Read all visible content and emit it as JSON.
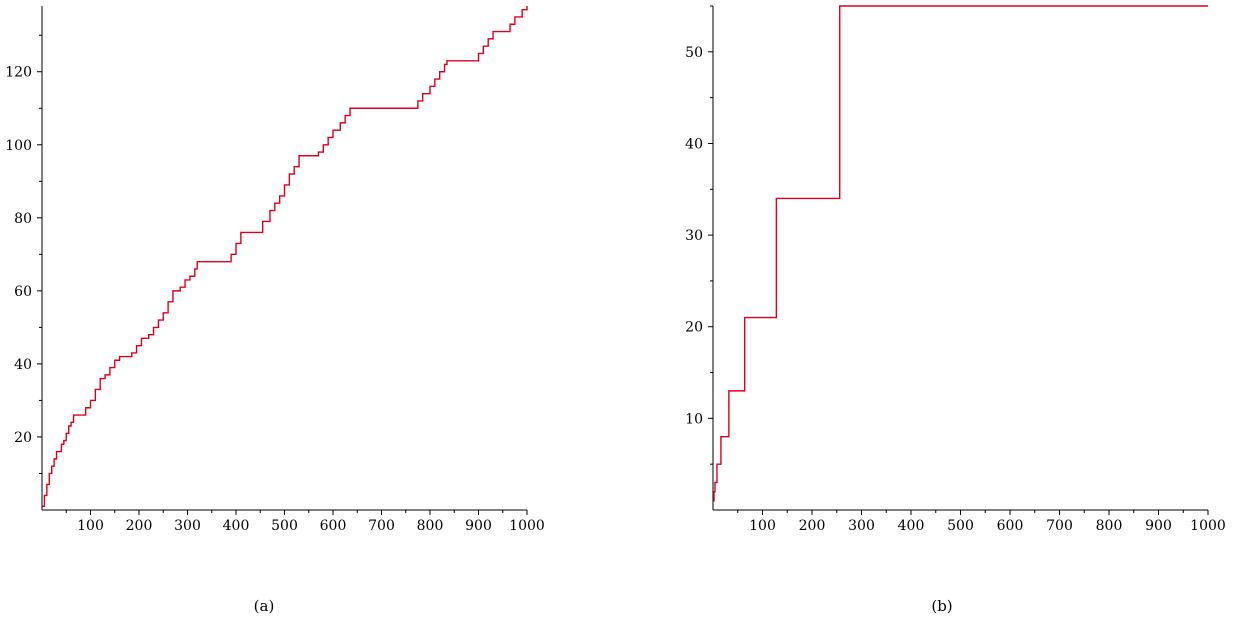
{
  "chart_data": [
    {
      "type": "line",
      "caption": "(a)",
      "title": "",
      "xlabel": "",
      "ylabel": "",
      "xlim": [
        0,
        1000
      ],
      "ylim": [
        0,
        138
      ],
      "xticks": [
        100,
        200,
        300,
        400,
        500,
        600,
        700,
        800,
        900,
        1000
      ],
      "yticks": [
        20,
        40,
        60,
        80,
        100,
        120
      ],
      "grid": false,
      "series": [
        {
          "color": "#e0001b",
          "x": [
            1,
            5,
            10,
            15,
            20,
            25,
            30,
            35,
            40,
            45,
            50,
            55,
            60,
            65,
            70,
            80,
            90,
            100,
            110,
            120,
            130,
            140,
            150,
            160,
            185,
            195,
            205,
            220,
            230,
            240,
            250,
            260,
            270,
            285,
            295,
            305,
            315,
            320,
            380,
            390,
            400,
            410,
            445,
            455,
            470,
            480,
            490,
            500,
            510,
            520,
            530,
            545,
            570,
            580,
            590,
            600,
            615,
            625,
            635,
            640,
            765,
            775,
            785,
            800,
            810,
            820,
            830,
            835,
            890,
            900,
            910,
            920,
            930,
            955,
            965,
            975,
            990,
            1000
          ],
          "y": [
            1,
            4,
            7,
            10,
            12,
            14,
            16,
            16,
            18,
            19,
            21,
            23,
            24,
            26,
            26,
            26,
            28,
            30,
            33,
            36,
            37,
            39,
            41,
            42,
            43,
            45,
            47,
            48,
            50,
            52,
            54,
            57,
            60,
            61,
            63,
            64,
            66,
            68,
            68,
            70,
            73,
            76,
            76,
            79,
            82,
            84,
            86,
            89,
            92,
            94,
            97,
            97,
            98,
            100,
            102,
            104,
            106,
            108,
            110,
            110,
            110,
            112,
            114,
            116,
            118,
            120,
            122,
            123,
            123,
            125,
            127,
            129,
            131,
            131,
            133,
            135,
            137,
            139
          ]
        }
      ]
    },
    {
      "type": "line",
      "caption": "(b)",
      "title": "",
      "xlabel": "",
      "ylabel": "",
      "xlim": [
        0,
        1000
      ],
      "ylim": [
        0,
        55
      ],
      "xticks": [
        100,
        200,
        300,
        400,
        500,
        600,
        700,
        800,
        900,
        1000
      ],
      "yticks": [
        10,
        20,
        30,
        40,
        50
      ],
      "grid": false,
      "series": [
        {
          "color": "#e0001b",
          "x": [
            1,
            2,
            2,
            4,
            4,
            8,
            8,
            16,
            16,
            32,
            32,
            64,
            64,
            128,
            128,
            256,
            256,
            512,
            512,
            1000
          ],
          "y": [
            1,
            1,
            2,
            2,
            3,
            3,
            5,
            5,
            8,
            8,
            13,
            13,
            21,
            21,
            34,
            34,
            55,
            55,
            55,
            55
          ]
        }
      ]
    }
  ]
}
